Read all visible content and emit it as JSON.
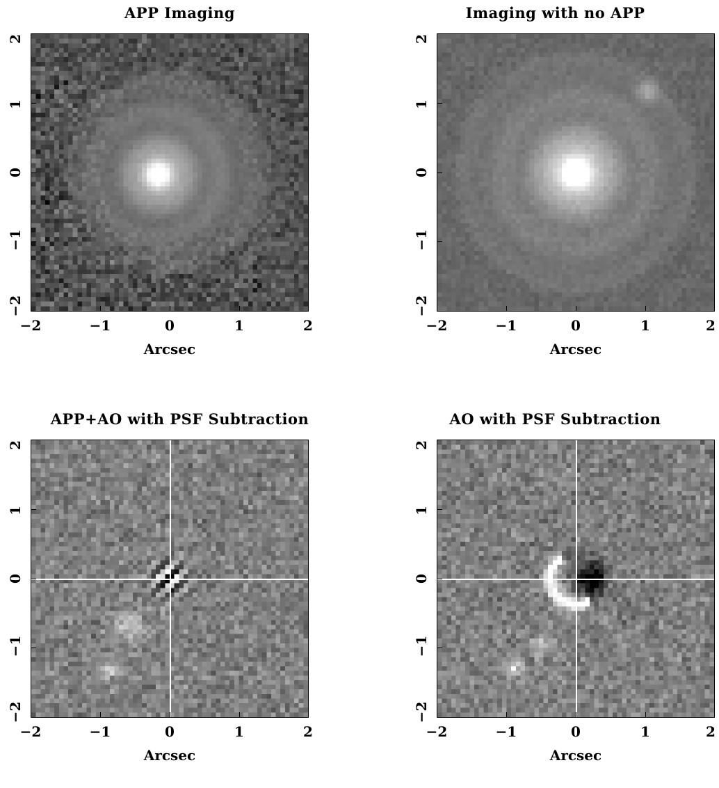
{
  "figure": {
    "panels": [
      {
        "id": "p1",
        "title": "APP Imaging",
        "xlabel": "Arcsec",
        "crosshair": false,
        "mode": "psf",
        "seed": 11
      },
      {
        "id": "p2",
        "title": "Imaging with no APP",
        "xlabel": "Arcsec",
        "crosshair": false,
        "mode": "psf_smooth",
        "seed": 23
      },
      {
        "id": "p3",
        "title": "APP+AO with PSF Subtraction",
        "xlabel": "Arcsec",
        "crosshair": true,
        "mode": "residual_app",
        "seed": 37
      },
      {
        "id": "p4",
        "title": "AO with PSF Subtraction",
        "xlabel": "Arcsec",
        "crosshair": true,
        "mode": "residual_ao",
        "seed": 53
      }
    ],
    "x_ticks": [
      "−2",
      "−1",
      "0",
      "1",
      "2"
    ],
    "y_ticks": [
      "−2",
      "−1",
      "0",
      "1",
      "2"
    ],
    "axis_range_arcsec": [
      -2,
      2
    ],
    "colormap": "grayscale"
  }
}
